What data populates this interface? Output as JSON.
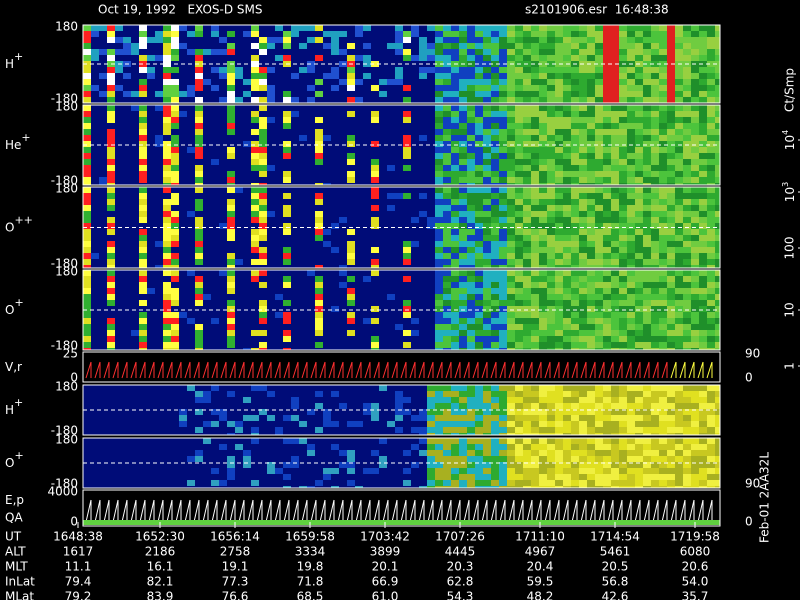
{
  "header": {
    "title": "Oct 19, 1992   EXOS-D SMS",
    "file": "s2101906.esr  16:48:38"
  },
  "panels": [
    {
      "label": "H",
      "charge": "+",
      "left_ticks": [
        "180",
        "-180"
      ],
      "right_ticks": []
    },
    {
      "label": "He",
      "charge": "+",
      "left_ticks": [
        "180",
        "-180"
      ],
      "right_ticks": []
    },
    {
      "label": "O",
      "charge": "++",
      "left_ticks": [
        "180",
        "-180"
      ],
      "right_ticks": []
    },
    {
      "label": "O",
      "charge": "+",
      "left_ticks": [
        "180",
        "-180"
      ],
      "right_ticks": []
    },
    {
      "label": "V,r",
      "charge": "",
      "left_ticks": [
        "25",
        "0"
      ],
      "right_ticks": [
        "90",
        "0"
      ]
    },
    {
      "label": "H",
      "charge": "+",
      "left_ticks": [
        "180",
        "-180"
      ],
      "right_ticks": []
    },
    {
      "label": "O",
      "charge": "+",
      "left_ticks": [
        "180",
        "-180"
      ],
      "right_ticks": [
        "90"
      ]
    },
    {
      "label": "E,p",
      "charge": "",
      "sublabel": "QA",
      "left_ticks": [
        "4000",
        "0"
      ],
      "right_ticks": [
        "0"
      ]
    }
  ],
  "colorbar": {
    "unit": "Ct/Smp",
    "ticks": [
      {
        "base": "10",
        "exp": "4"
      },
      {
        "base": "10",
        "exp": "3"
      },
      "100",
      "10",
      "1"
    ]
  },
  "table": {
    "rows": [
      {
        "name": "UT",
        "cells": [
          "1648:38",
          "1652:30",
          "1656:14",
          "1659:58",
          "1703:42",
          "1707:26",
          "1711:10",
          "1714:54",
          "1719:58"
        ]
      },
      {
        "name": "ALT",
        "cells": [
          "1617",
          "2186",
          "2758",
          "3334",
          "3899",
          "4445",
          "4967",
          "5461",
          "6080"
        ]
      },
      {
        "name": "MLT",
        "cells": [
          "11.1",
          "16.1",
          "19.1",
          "19.8",
          "20.1",
          "20.3",
          "20.4",
          "20.5",
          "20.6"
        ]
      },
      {
        "name": "InLat",
        "cells": [
          "79.4",
          "82.1",
          "77.3",
          "71.8",
          "66.9",
          "62.8",
          "59.5",
          "56.8",
          "54.0"
        ]
      },
      {
        "name": "MLat",
        "cells": [
          "79.2",
          "83.9",
          "76.6",
          "68.5",
          "61.0",
          "54.3",
          "48.2",
          "42.6",
          "35.7"
        ]
      }
    ]
  },
  "footer": "Feb-01 2AA32L"
}
